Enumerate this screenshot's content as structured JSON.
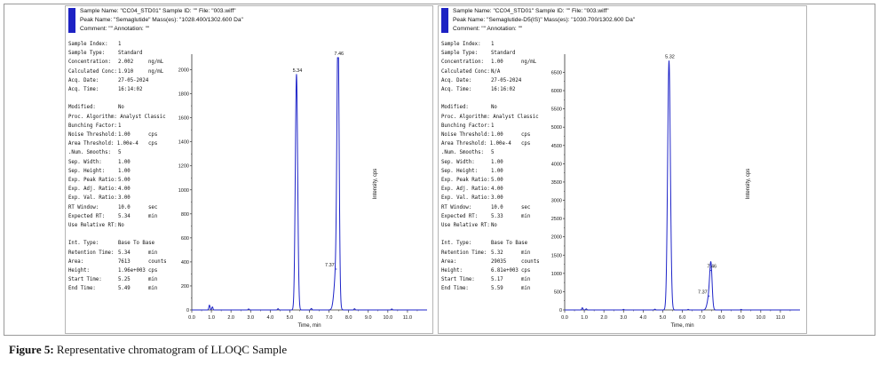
{
  "figure_caption": {
    "label": "Figure 5:",
    "text": "Representative chromatogram of LLOQC Sample"
  },
  "panels": [
    {
      "header": {
        "line1": "Sample Name: \"CC04_STD01\"   Sample ID: \"\"   File: \"003.wiff\"",
        "line2": "Peak Name: \"Semaglutide\"   Mass(es): \"1028.400/1302.600 Da\"",
        "line3": "Comment: \"\"   Annotation: \"\""
      },
      "info": [
        [
          "Sample Index:",
          "1",
          ""
        ],
        [
          "Sample Type:",
          "Standard",
          ""
        ],
        [
          "Concentration:",
          "2.002",
          "ng/mL"
        ],
        [
          "Calculated Conc:",
          "1.910",
          "ng/mL"
        ],
        [
          "Acq. Date:",
          "27-05-2024",
          ""
        ],
        [
          "Acq. Time:",
          "16:14:02",
          ""
        ],
        [
          "",
          "",
          ""
        ],
        [
          "Modified:",
          "No",
          ""
        ],
        [
          "Proc. Algorithm: Analyst Classic",
          "",
          ""
        ],
        [
          "Bunching Factor:",
          "1",
          ""
        ],
        [
          "Noise Threshold:",
          "1.00",
          "cps"
        ],
        [
          "Area Threshold: 1.00e-4",
          "",
          "cps"
        ],
        [
          ".Num. Smooths:",
          "5",
          ""
        ],
        [
          "Sep. Width:",
          "1.00",
          ""
        ],
        [
          "Sep. Height:",
          "1.00",
          ""
        ],
        [
          "Exp. Peak Ratio:",
          "5.00",
          ""
        ],
        [
          "Exp. Adj. Ratio:",
          "4.00",
          ""
        ],
        [
          "Exp. Val. Ratio:",
          "3.00",
          ""
        ],
        [
          "RT Window:",
          "10.0",
          "sec"
        ],
        [
          "Expected RT:",
          "5.34",
          "min"
        ],
        [
          "Use Relative RT:",
          "No",
          ""
        ],
        [
          "",
          "",
          ""
        ],
        [
          "Int. Type:",
          "Base To Base",
          ""
        ],
        [
          "Retention Time:",
          "5.34",
          "min"
        ],
        [
          "Area:",
          "7613",
          "counts"
        ],
        [
          "Height:",
          "1.96e+003",
          "cps"
        ],
        [
          "Start Time:",
          "5.25",
          "min"
        ],
        [
          "End Time:",
          "5.49",
          "min"
        ]
      ]
    },
    {
      "header": {
        "line1": "Sample Name: \"CC04_STD01\"   Sample ID: \"\"   File: \"003.wiff\"",
        "line2": "Peak Name: \"Semaglutide-D5(IS)\"   Mass(es): \"1030.700/1302.600 Da\"",
        "line3": "Comment: \"\"   Annotation: \"\""
      },
      "info": [
        [
          "Sample Index:",
          "1",
          ""
        ],
        [
          "Sample Type:",
          "Standard",
          ""
        ],
        [
          "Concentration:",
          "1.00",
          "ng/mL"
        ],
        [
          "Calculated Conc:",
          "N/A",
          ""
        ],
        [
          "Acq. Date:",
          "27-05-2024",
          ""
        ],
        [
          "Acq. Time:",
          "16:16:02",
          ""
        ],
        [
          "",
          "",
          ""
        ],
        [
          "Modified:",
          "No",
          ""
        ],
        [
          "Proc. Algorithm: Analyst Classic",
          "",
          ""
        ],
        [
          "Bunching Factor:",
          "1",
          ""
        ],
        [
          "Noise Threshold:",
          "1.00",
          "cps"
        ],
        [
          "Area Threshold: 1.00e-4",
          "",
          "cps"
        ],
        [
          ".Num. Smooths:",
          "5",
          ""
        ],
        [
          "Sep. Width:",
          "1.00",
          ""
        ],
        [
          "Sep. Height:",
          "1.00",
          ""
        ],
        [
          "Exp. Peak Ratio:",
          "5.00",
          ""
        ],
        [
          "Exp. Adj. Ratio:",
          "4.00",
          ""
        ],
        [
          "Exp. Val. Ratio:",
          "3.00",
          ""
        ],
        [
          "RT Window:",
          "10.0",
          "sec"
        ],
        [
          "Expected RT:",
          "5.33",
          "min"
        ],
        [
          "Use Relative RT:",
          "No",
          ""
        ],
        [
          "",
          "",
          ""
        ],
        [
          "Int. Type:",
          "Base To Base",
          ""
        ],
        [
          "Retention Time:",
          "5.32",
          "min"
        ],
        [
          "Area:",
          "29035",
          "counts"
        ],
        [
          "Height:",
          "6.81e+003",
          "cps"
        ],
        [
          "Start Time:",
          "5.17",
          "min"
        ],
        [
          "End Time:",
          "5.59",
          "min"
        ]
      ]
    }
  ],
  "chart_data": [
    {
      "type": "line",
      "xlabel": "Time, min",
      "ylabel": "Intensity, cps",
      "xlim": [
        0,
        12
      ],
      "ylim": [
        0,
        2100
      ],
      "xticks": [
        0.0,
        1.0,
        2.0,
        3.0,
        4.0,
        5.0,
        6.0,
        7.0,
        8.0,
        9.0,
        10.0,
        11.0
      ],
      "yticks": [
        0,
        200,
        400,
        600,
        800,
        1000,
        1200,
        1400,
        1600,
        1800,
        2000
      ],
      "series": [
        {
          "color": "#1e24c8",
          "peaks": [
            {
              "rt": 5.34,
              "height": 1960,
              "width": 0.06,
              "label": "5.34"
            },
            {
              "rt": 7.37,
              "height": 340,
              "width": 0.1,
              "label": "7.37"
            },
            {
              "rt": 7.46,
              "height": 2150,
              "width": 0.055,
              "label": "7.46"
            }
          ]
        }
      ],
      "noise": [
        [
          0.9,
          40
        ],
        [
          1.05,
          25
        ],
        [
          2.9,
          8
        ],
        [
          4.4,
          10
        ],
        [
          6.1,
          12
        ],
        [
          8.3,
          10
        ],
        [
          10.2,
          8
        ]
      ]
    },
    {
      "type": "line",
      "xlabel": "Time, min",
      "ylabel": "Intensity, cps",
      "xlim": [
        0,
        12
      ],
      "ylim": [
        0,
        6900
      ],
      "xticks": [
        0.0,
        1.0,
        2.0,
        3.0,
        4.0,
        5.0,
        6.0,
        7.0,
        8.0,
        9.0,
        10.0,
        11.0
      ],
      "yticks": [
        0,
        500,
        1000,
        1500,
        2000,
        2500,
        3000,
        3500,
        4000,
        4500,
        5000,
        5500,
        6000,
        6500
      ],
      "series": [
        {
          "color": "#1e24c8",
          "peaks": [
            {
              "rt": 5.32,
              "height": 6810,
              "width": 0.07,
              "label": "5.32"
            },
            {
              "rt": 7.37,
              "height": 380,
              "width": 0.09,
              "label": "7.37"
            },
            {
              "rt": 7.46,
              "height": 1080,
              "width": 0.06,
              "label": "7.46"
            }
          ]
        }
      ],
      "noise": [
        [
          0.9,
          60
        ],
        [
          1.1,
          30
        ],
        [
          3.0,
          15
        ],
        [
          4.6,
          20
        ],
        [
          6.3,
          15
        ],
        [
          9.0,
          15
        ]
      ]
    }
  ]
}
